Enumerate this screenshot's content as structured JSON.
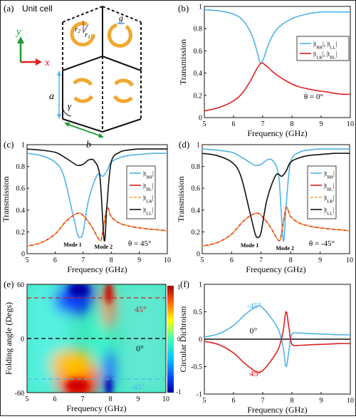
{
  "panels": {
    "a": {
      "label": "(a)",
      "title": "Unit cell",
      "axis_y": "y",
      "axis_x": "x",
      "dim_a": "a",
      "dim_b": "b",
      "angle": "γ",
      "r1": "r",
      "r1_sub": "1",
      "r2": "r",
      "r2_sub": "2",
      "gap": "g",
      "ring_color": "#F0A830"
    },
    "b": {
      "label": "(b)",
      "annotation": "θ = 0°"
    },
    "c": {
      "label": "(c)",
      "annotation": "θ = 45°",
      "mode1": "Mode 1",
      "mode2": "Mode 2"
    },
    "d": {
      "label": "(d)",
      "annotation": "θ = -45°",
      "mode1": "Mode 1",
      "mode2": "Mode 2"
    },
    "e": {
      "label": "(e)",
      "ann_top": "45°",
      "ann_mid": "0°",
      "ann_bot": "-45°",
      "cb_ticks": [
        "1",
        "0",
        "-1"
      ],
      "cb_mid": "0"
    },
    "f": {
      "label": "(f)",
      "ann_m45": "-45°",
      "ann_0": "0°",
      "ann_45": "45°"
    }
  },
  "chart_data": [
    {
      "panel": "b",
      "type": "line",
      "xlabel": "Frequency (GHz)",
      "ylabel": "Transmission",
      "xlim": [
        5,
        10
      ],
      "ylim": [
        0,
        1
      ],
      "xticks": [
        "5",
        "6",
        "7",
        "8",
        "9",
        "10"
      ],
      "yticks": [
        "0",
        "0.2",
        "0.4",
        "0.6",
        "0.8",
        "1"
      ],
      "legend_position": "right",
      "series": [
        {
          "name": "|tRR|, |tLL|",
          "legend_main": "|t",
          "legend_sub": "RR",
          "legend_main2": "|, |t",
          "legend_sub2": "LL",
          "legend_tail": "|",
          "color": "#4FB3E8",
          "x": [
            5.0,
            5.5,
            6.0,
            6.3,
            6.6,
            6.8,
            6.9,
            7.0,
            7.2,
            7.5,
            8.0,
            8.5,
            9.0,
            9.5,
            10.0
          ],
          "y": [
            0.97,
            0.96,
            0.93,
            0.88,
            0.76,
            0.6,
            0.5,
            0.51,
            0.66,
            0.8,
            0.89,
            0.93,
            0.95,
            0.95,
            0.95
          ]
        },
        {
          "name": "|tLR|, |tRL|",
          "legend_main": "|t",
          "legend_sub": "LR",
          "legend_main2": "|, |t",
          "legend_sub2": "RL",
          "legend_tail": "|",
          "color": "#E02020",
          "x": [
            5.0,
            5.5,
            6.0,
            6.3,
            6.6,
            6.8,
            6.95,
            7.1,
            7.4,
            7.8,
            8.2,
            8.7,
            9.2,
            9.7,
            10.0
          ],
          "y": [
            0.06,
            0.09,
            0.15,
            0.22,
            0.34,
            0.44,
            0.49,
            0.47,
            0.4,
            0.33,
            0.28,
            0.25,
            0.23,
            0.21,
            0.21
          ]
        }
      ]
    },
    {
      "panel": "c",
      "type": "line",
      "xlabel": "Frequency (GHz)",
      "ylabel": "Transmission",
      "xlim": [
        5,
        10
      ],
      "ylim": [
        0,
        1
      ],
      "xticks": [
        "5",
        "6",
        "7",
        "8",
        "9",
        "10"
      ],
      "yticks": [
        "0",
        "0.2",
        "0.4",
        "0.6",
        "0.8",
        "1"
      ],
      "legend_position": "right",
      "series": [
        {
          "name": "|tRR|",
          "legend_main": "|t",
          "legend_sub": "RR",
          "legend_tail": "|",
          "color": "#4FB3E8",
          "dash": false,
          "x": [
            5.0,
            5.5,
            6.0,
            6.3,
            6.6,
            6.8,
            6.9,
            7.0,
            7.2,
            7.5,
            7.7,
            7.85,
            8.0,
            8.3,
            8.6,
            9.0,
            9.5,
            10.0
          ],
          "y": [
            0.92,
            0.9,
            0.84,
            0.72,
            0.4,
            0.18,
            0.15,
            0.2,
            0.5,
            0.72,
            0.71,
            0.76,
            0.84,
            0.88,
            0.9,
            0.91,
            0.92,
            0.92
          ]
        },
        {
          "name": "|tRL|",
          "legend_main": "|t",
          "legend_sub": "RL",
          "legend_tail": "|",
          "color": "#E02020",
          "dash": false,
          "x": [
            5.0,
            5.5,
            6.0,
            6.4,
            6.8,
            7.0,
            7.3,
            7.6,
            7.7,
            7.85,
            8.0,
            8.3,
            8.7,
            9.2,
            9.6,
            10.0
          ],
          "y": [
            0.07,
            0.1,
            0.18,
            0.3,
            0.37,
            0.35,
            0.25,
            0.12,
            0.2,
            0.42,
            0.34,
            0.28,
            0.25,
            0.23,
            0.22,
            0.21
          ]
        },
        {
          "name": "|tLR|",
          "legend_main": "|t",
          "legend_sub": "LR",
          "legend_tail": "|",
          "color": "#F0A030",
          "dash": true,
          "x": [
            5.0,
            5.5,
            6.0,
            6.4,
            6.8,
            7.0,
            7.3,
            7.6,
            7.7,
            7.85,
            8.0,
            8.3,
            8.7,
            9.2,
            9.6,
            10.0
          ],
          "y": [
            0.07,
            0.1,
            0.18,
            0.3,
            0.37,
            0.35,
            0.25,
            0.12,
            0.2,
            0.42,
            0.34,
            0.28,
            0.25,
            0.23,
            0.22,
            0.21
          ]
        },
        {
          "name": "|tLL|",
          "legend_main": "|t",
          "legend_sub": "LL",
          "legend_tail": "|",
          "color": "#111111",
          "dash": false,
          "x": [
            5.0,
            5.5,
            6.0,
            6.3,
            6.6,
            6.8,
            7.0,
            7.2,
            7.4,
            7.6,
            7.75,
            7.85,
            8.0,
            8.3,
            8.6,
            9.0,
            9.5,
            10.0
          ],
          "y": [
            0.96,
            0.95,
            0.93,
            0.89,
            0.84,
            0.81,
            0.82,
            0.86,
            0.85,
            0.7,
            0.12,
            0.45,
            0.84,
            0.93,
            0.95,
            0.96,
            0.96,
            0.96
          ]
        }
      ]
    },
    {
      "panel": "d",
      "type": "line",
      "xlabel": "Frequency (GHz)",
      "ylabel": "Transmission",
      "xlim": [
        5,
        10
      ],
      "ylim": [
        0,
        1
      ],
      "xticks": [
        "5",
        "6",
        "7",
        "8",
        "9",
        "10"
      ],
      "yticks": [
        "0",
        "0.2",
        "0.4",
        "0.6",
        "0.8",
        "1"
      ],
      "legend_position": "right",
      "series": [
        {
          "name": "|tRR|",
          "legend_main": "|t",
          "legend_sub": "RR",
          "legend_tail": "|",
          "color": "#4FB3E8",
          "dash": false,
          "x": [
            5.0,
            5.5,
            6.0,
            6.3,
            6.6,
            6.8,
            7.0,
            7.2,
            7.4,
            7.6,
            7.75,
            7.85,
            8.0,
            8.3,
            8.6,
            9.0,
            9.5,
            10.0
          ],
          "y": [
            0.96,
            0.95,
            0.93,
            0.89,
            0.84,
            0.81,
            0.82,
            0.86,
            0.85,
            0.7,
            0.12,
            0.45,
            0.84,
            0.93,
            0.95,
            0.96,
            0.96,
            0.96
          ]
        },
        {
          "name": "|tRL|",
          "legend_main": "|t",
          "legend_sub": "RL",
          "legend_tail": "|",
          "color": "#E02020",
          "dash": false,
          "x": [
            5.0,
            5.5,
            6.0,
            6.4,
            6.8,
            7.0,
            7.3,
            7.6,
            7.7,
            7.85,
            8.0,
            8.3,
            8.7,
            9.2,
            9.6,
            10.0
          ],
          "y": [
            0.07,
            0.1,
            0.18,
            0.3,
            0.37,
            0.35,
            0.25,
            0.12,
            0.2,
            0.42,
            0.34,
            0.28,
            0.25,
            0.23,
            0.22,
            0.21
          ]
        },
        {
          "name": "|tLR|",
          "legend_main": "|t",
          "legend_sub": "LR",
          "legend_tail": "|",
          "color": "#F0A030",
          "dash": true,
          "x": [
            5.0,
            5.5,
            6.0,
            6.4,
            6.8,
            7.0,
            7.3,
            7.6,
            7.7,
            7.85,
            8.0,
            8.3,
            8.7,
            9.2,
            9.6,
            10.0
          ],
          "y": [
            0.07,
            0.1,
            0.18,
            0.3,
            0.37,
            0.35,
            0.25,
            0.12,
            0.2,
            0.42,
            0.34,
            0.28,
            0.25,
            0.23,
            0.22,
            0.21
          ]
        },
        {
          "name": "|tLL|",
          "legend_main": "|t",
          "legend_sub": "LL",
          "legend_tail": "|",
          "color": "#111111",
          "dash": false,
          "x": [
            5.0,
            5.5,
            6.0,
            6.3,
            6.6,
            6.8,
            6.9,
            7.0,
            7.2,
            7.5,
            7.7,
            7.85,
            8.0,
            8.3,
            8.6,
            9.0,
            9.5,
            10.0
          ],
          "y": [
            0.92,
            0.9,
            0.84,
            0.72,
            0.4,
            0.18,
            0.15,
            0.2,
            0.5,
            0.72,
            0.71,
            0.76,
            0.84,
            0.88,
            0.9,
            0.91,
            0.92,
            0.92
          ]
        }
      ]
    },
    {
      "panel": "e",
      "type": "heatmap",
      "xlabel": "Frequency (GHz)",
      "ylabel": "Folding angle (Degs)",
      "xlim": [
        5,
        10
      ],
      "ylim": [
        -60,
        60
      ],
      "xticks": [
        "5",
        "6",
        "7",
        "8",
        "9",
        "10"
      ],
      "yticks": [
        "60",
        "0",
        "-60"
      ],
      "colorbar_range": [
        -1,
        1
      ],
      "dashed_lines_deg": [
        45,
        0,
        -45
      ]
    },
    {
      "panel": "f",
      "type": "line",
      "xlabel": "Frequency (GHz)",
      "ylabel": "Circular Dichroism",
      "xlim": [
        5,
        10
      ],
      "ylim": [
        -1,
        1
      ],
      "xticks": [
        "5",
        "6",
        "7",
        "8",
        "9",
        "10"
      ],
      "yticks": [
        "-1",
        "-0.5",
        "0",
        "0.5",
        "1"
      ],
      "series": [
        {
          "label": "-45°",
          "color": "#4FB3E8",
          "x": [
            5.0,
            5.5,
            6.0,
            6.4,
            6.8,
            7.0,
            7.3,
            7.55,
            7.7,
            7.8,
            7.9,
            8.0,
            8.3,
            8.7,
            9.2,
            9.6,
            10.0
          ],
          "y": [
            0.04,
            0.1,
            0.25,
            0.45,
            0.6,
            0.57,
            0.38,
            0.16,
            -0.15,
            -0.5,
            -0.2,
            0.09,
            0.11,
            0.1,
            0.09,
            0.08,
            0.08
          ]
        },
        {
          "label": "0°",
          "color": "#111111",
          "x": [
            5.0,
            10.0
          ],
          "y": [
            0.0,
            0.0
          ]
        },
        {
          "label": "45°",
          "color": "#E02020",
          "x": [
            5.0,
            5.5,
            6.0,
            6.4,
            6.8,
            7.0,
            7.3,
            7.55,
            7.7,
            7.8,
            7.9,
            8.0,
            8.3,
            8.7,
            9.2,
            9.6,
            10.0
          ],
          "y": [
            -0.04,
            -0.1,
            -0.25,
            -0.45,
            -0.6,
            -0.57,
            -0.38,
            -0.16,
            0.15,
            0.5,
            0.2,
            -0.09,
            -0.11,
            -0.1,
            -0.09,
            -0.08,
            -0.08
          ]
        }
      ]
    }
  ]
}
